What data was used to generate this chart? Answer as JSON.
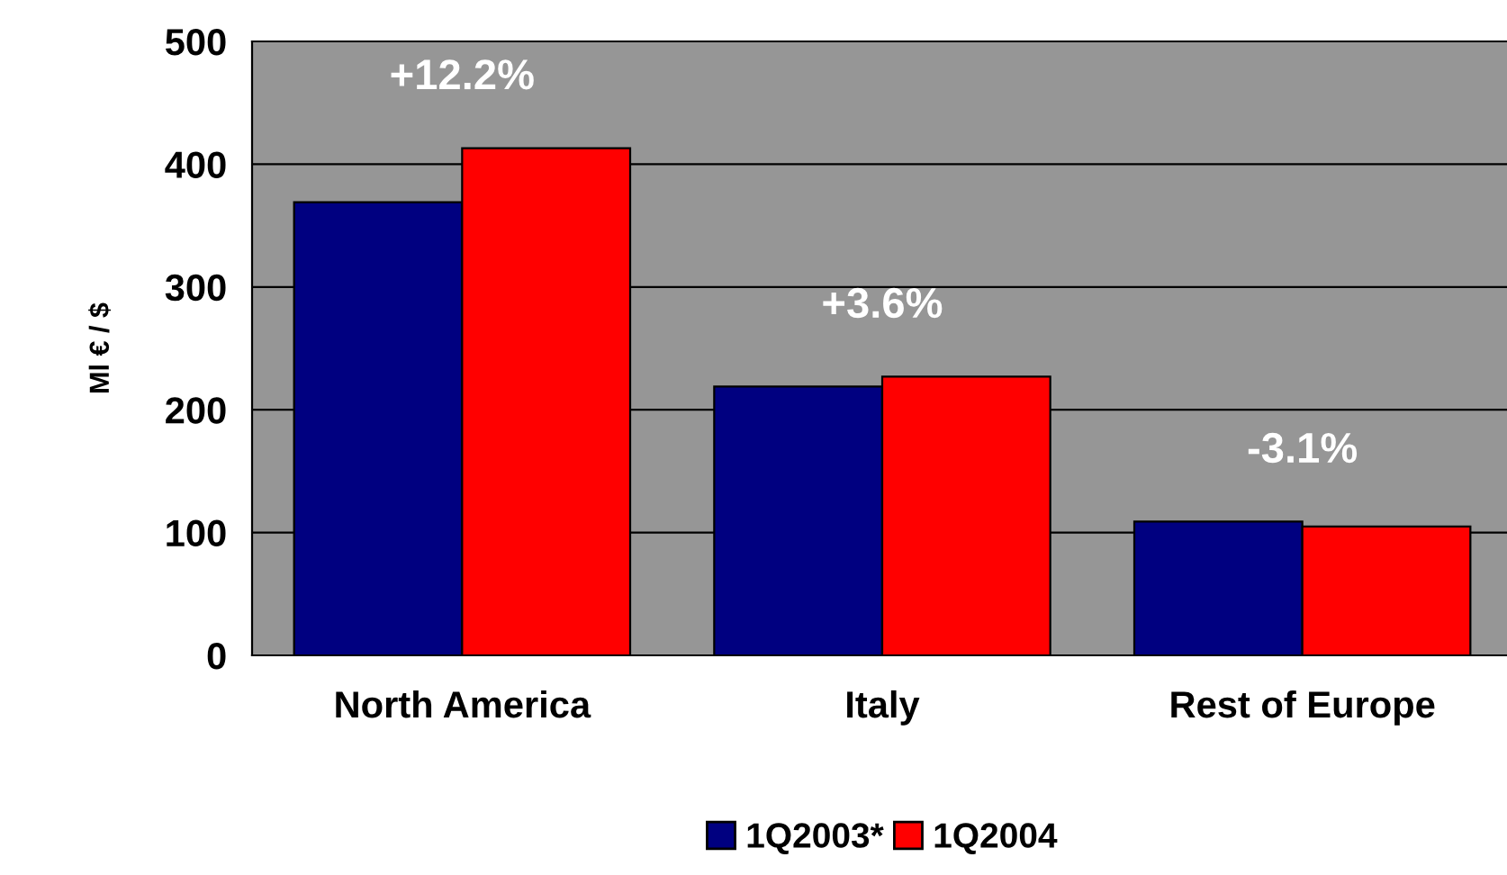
{
  "chart_data": {
    "type": "bar",
    "ylabel": "Ml € / $",
    "categories": [
      "North America",
      "Italy",
      "Rest of Europe"
    ],
    "series": [
      {
        "name": "1Q2003*",
        "color": "#000080",
        "values": [
          369,
          219,
          109
        ]
      },
      {
        "name": "1Q2004",
        "color": "#ff0000",
        "values": [
          413,
          227,
          105
        ]
      }
    ],
    "ylim": [
      0,
      500
    ],
    "yticks": [
      0,
      100,
      200,
      300,
      400,
      500
    ],
    "grid": "y",
    "legend": "bottom",
    "annotations": [
      {
        "text": "+12.2%",
        "x": "North America",
        "y": 413
      },
      {
        "text": "+3.6%",
        "x": "Italy",
        "y": 227
      },
      {
        "text": "-3.1%",
        "x": "Rest of Europe",
        "y": 109
      }
    ]
  }
}
